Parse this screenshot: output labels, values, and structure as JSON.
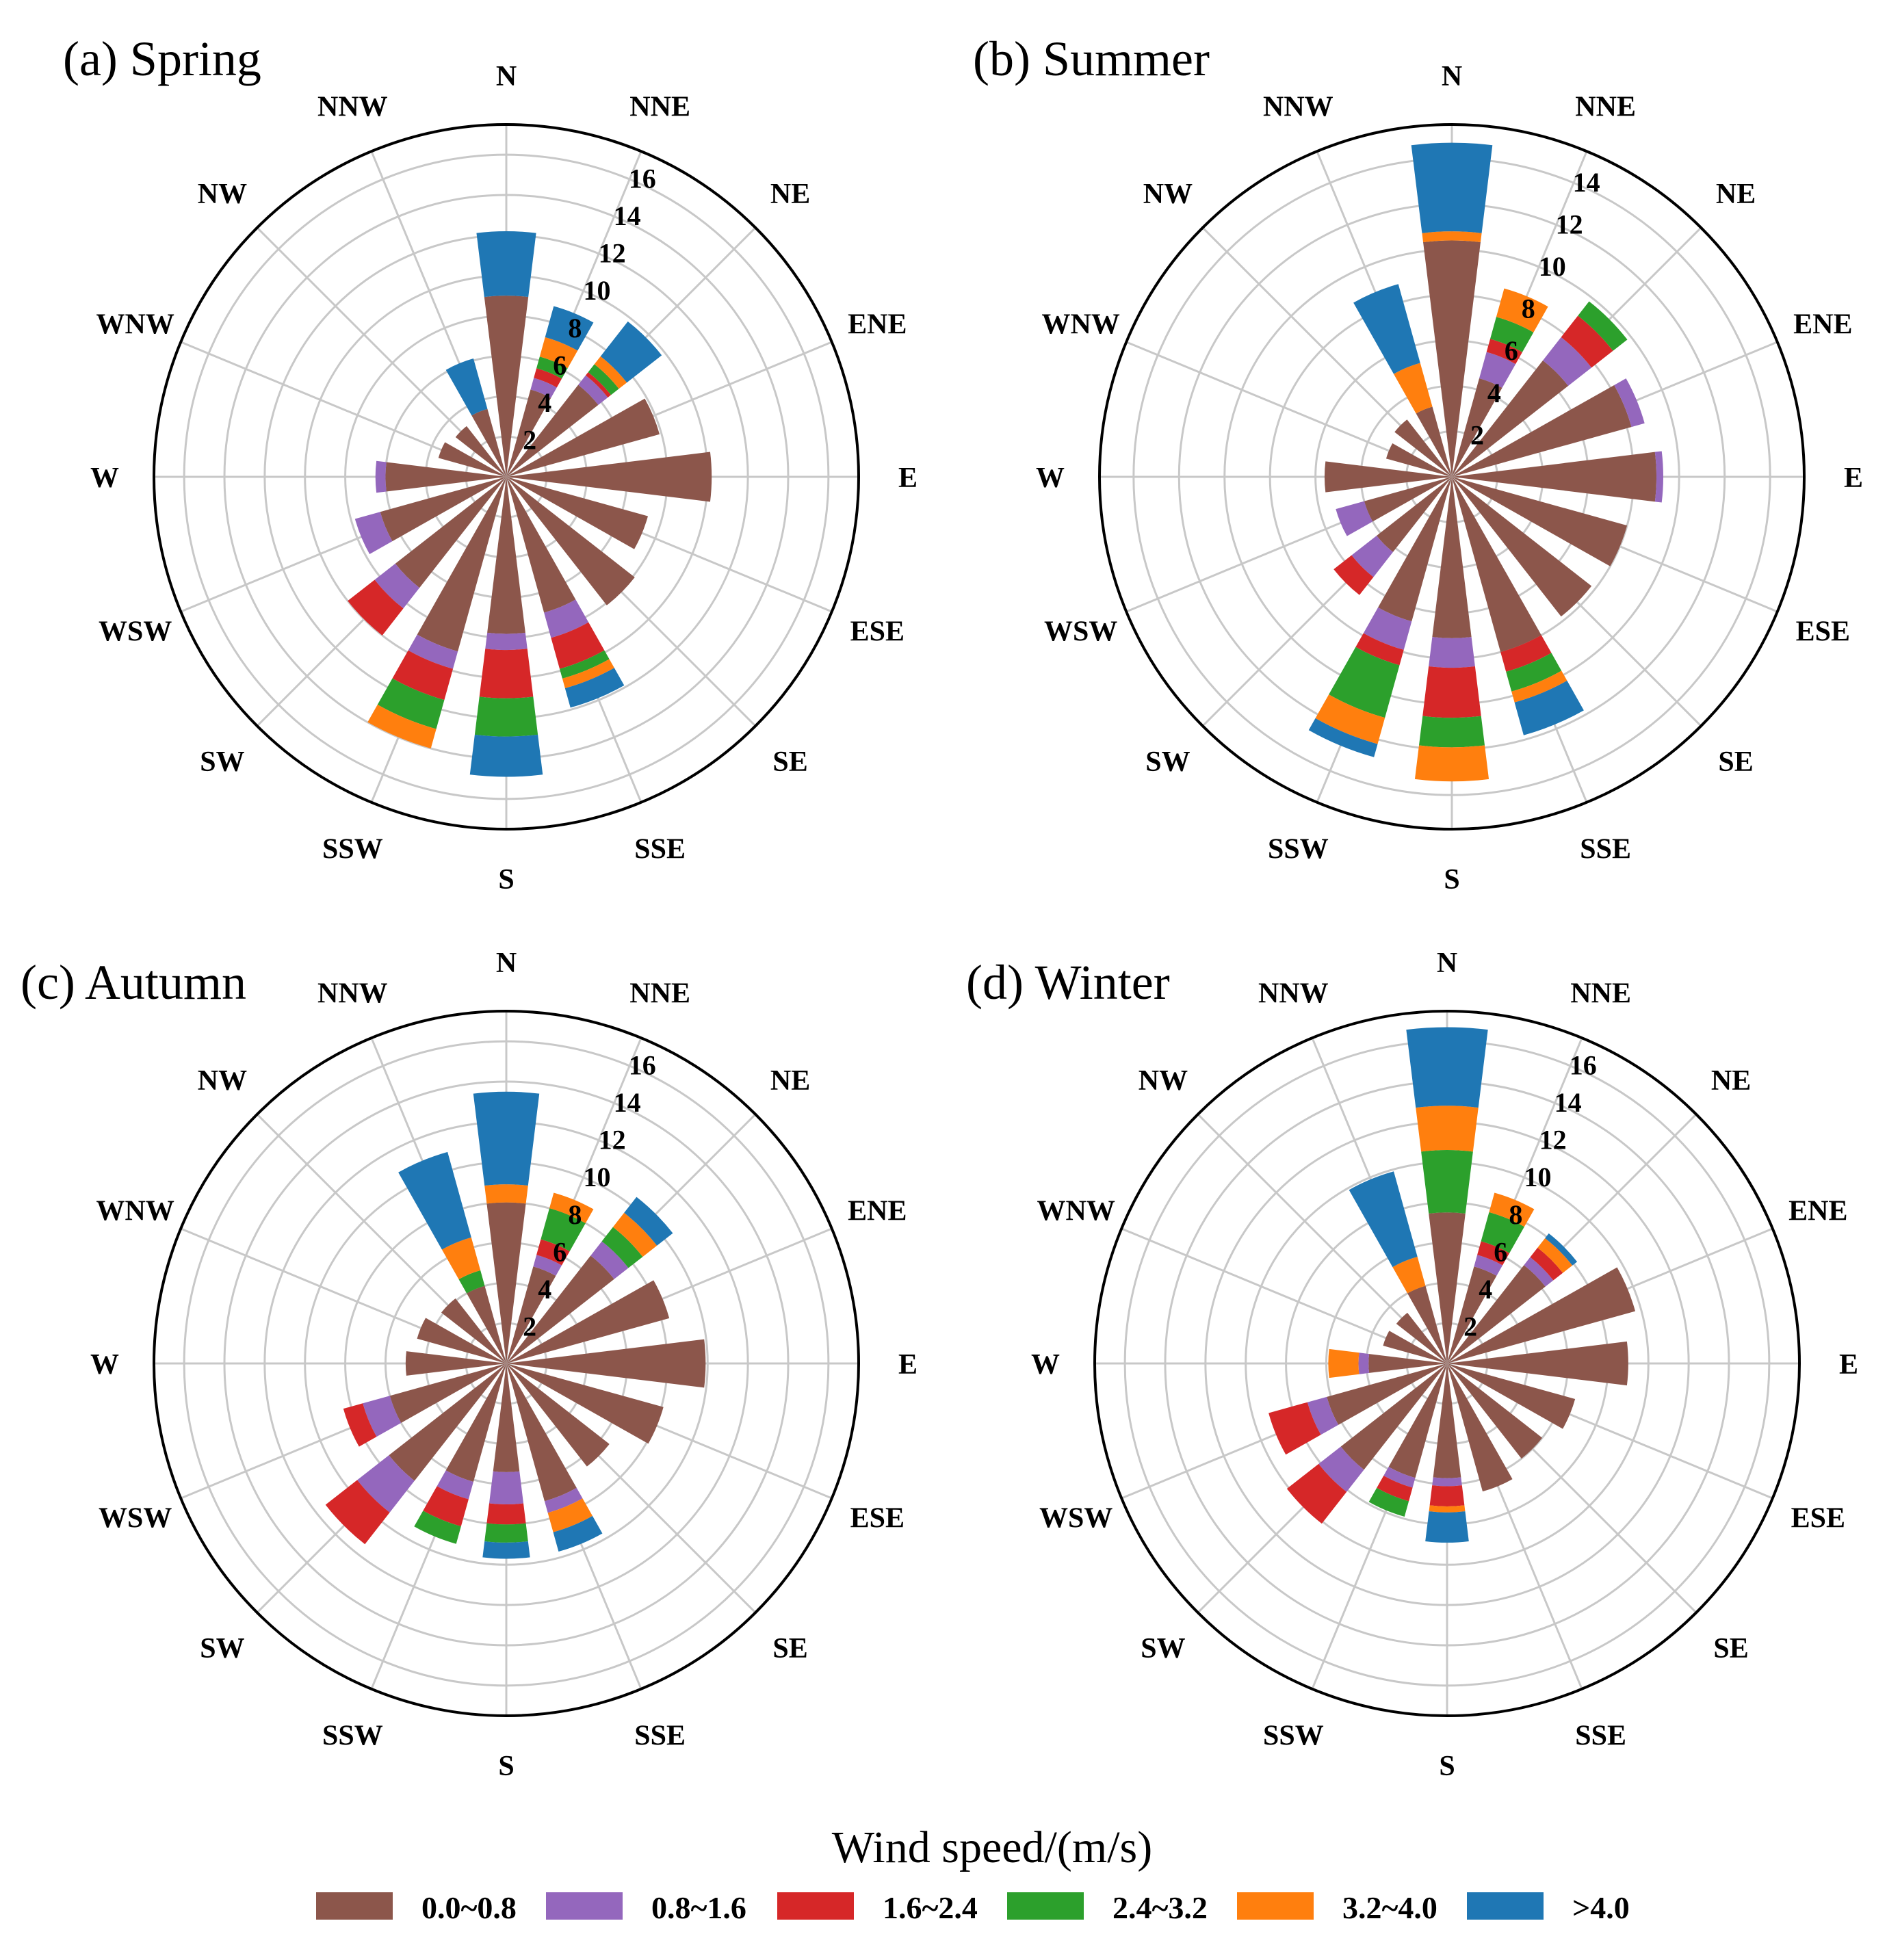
{
  "chart_data": {
    "type": "wind-rose",
    "directions": [
      "N",
      "NNE",
      "NE",
      "ENE",
      "E",
      "ESE",
      "SE",
      "SSE",
      "S",
      "SSW",
      "SW",
      "WSW",
      "W",
      "WNW",
      "NW",
      "NNW"
    ],
    "speed_bins": [
      "0.0~0.8",
      "0.8~1.6",
      "1.6~2.4",
      "2.4~3.2",
      "3.2~4.0",
      ">4.0"
    ],
    "bin_colors": [
      "#8c564b",
      "#9467bd",
      "#d62728",
      "#2ca02c",
      "#ff7f0e",
      "#1f77b4"
    ],
    "legend_title": "Wind speed/(m/s)",
    "panels": [
      {
        "title": "(a) Spring",
        "rmax": 17.5,
        "rticks": [
          2,
          4,
          6,
          8,
          10,
          12,
          14,
          16
        ],
        "values": [
          [
            9.0,
            0,
            0,
            0,
            0,
            3.2
          ],
          [
            4.5,
            0.6,
            0.5,
            0.6,
            1.0,
            1.6
          ],
          [
            5.8,
            0.6,
            0.2,
            0.5,
            0.5,
            2.2
          ],
          [
            7.9,
            0,
            0,
            0,
            0,
            0
          ],
          [
            10.2,
            0,
            0,
            0,
            0,
            0
          ],
          [
            7.3,
            0,
            0,
            0,
            0,
            0
          ],
          [
            8.1,
            0,
            0,
            0,
            0,
            0
          ],
          [
            7.0,
            1.3,
            1.6,
            0.5,
            0.5,
            1.0
          ],
          [
            7.8,
            0.8,
            2.4,
            1.9,
            0,
            2.0
          ],
          [
            9.0,
            0.9,
            1.6,
            1.5,
            1.0,
            0
          ],
          [
            7.0,
            1.3,
            1.7,
            0,
            0,
            0
          ],
          [
            6.5,
            1.3,
            0,
            0,
            0,
            0
          ],
          [
            6.0,
            0.5,
            0,
            0,
            0,
            0
          ],
          [
            3.5,
            0,
            0,
            0,
            0,
            0
          ],
          [
            3.2,
            0,
            0,
            0,
            0,
            0
          ],
          [
            3.5,
            0,
            0,
            0,
            0,
            2.6
          ]
        ]
      },
      {
        "title": "(b) Summer",
        "rmax": 15.5,
        "rticks": [
          2,
          4,
          6,
          8,
          10,
          12,
          14
        ],
        "values": [
          [
            10.4,
            0,
            0,
            0,
            0.4,
            3.9
          ],
          [
            4.5,
            1.2,
            0.6,
            1.0,
            1.3,
            0
          ],
          [
            6.5,
            1.3,
            1.2,
            0.8,
            0,
            0
          ],
          [
            8.2,
            0.6,
            0,
            0,
            0,
            0
          ],
          [
            9.0,
            0.3,
            0,
            0,
            0,
            0
          ],
          [
            8.0,
            0,
            0,
            0,
            0,
            0
          ],
          [
            7.8,
            0,
            0,
            0,
            0,
            0
          ],
          [
            8.0,
            0,
            0.9,
            0.9,
            0.5,
            1.5
          ],
          [
            7.1,
            1.3,
            2.2,
            1.3,
            1.5,
            0
          ],
          [
            6.6,
            1.3,
            0.7,
            2.4,
            1.2,
            0.6
          ],
          [
            4.2,
            1.4,
            1.0,
            0,
            0,
            0
          ],
          [
            4.0,
            1.3,
            0,
            0,
            0,
            0
          ],
          [
            5.6,
            0,
            0,
            0,
            0,
            0
          ],
          [
            3.0,
            0,
            0,
            0,
            0,
            0
          ],
          [
            3.2,
            0,
            0,
            0,
            0,
            0
          ],
          [
            3.2,
            0,
            0,
            0,
            2.0,
            3.6
          ]
        ]
      },
      {
        "title": "(c) Autumn",
        "rmax": 17.5,
        "rticks": [
          2,
          4,
          6,
          8,
          10,
          12,
          14,
          16
        ],
        "values": [
          [
            8.0,
            0,
            0,
            0,
            0.9,
            4.6
          ],
          [
            5.0,
            0.6,
            0.8,
            1.6,
            0.8,
            0
          ],
          [
            6.8,
            0.9,
            0,
            0.9,
            0.9,
            1.0
          ],
          [
            8.4,
            0,
            0,
            0,
            0,
            0
          ],
          [
            9.9,
            0,
            0,
            0,
            0,
            0
          ],
          [
            8.1,
            0,
            0,
            0,
            0,
            0
          ],
          [
            6.5,
            0,
            0,
            0,
            0,
            0
          ],
          [
            7.1,
            0.6,
            0,
            0,
            1.0,
            1.0
          ],
          [
            5.4,
            1.6,
            1.0,
            0.9,
            0,
            0.8
          ],
          [
            6.1,
            0.9,
            1.4,
            0.9,
            0,
            0
          ],
          [
            7.4,
            2.0,
            2.0,
            0,
            0,
            0
          ],
          [
            6.0,
            1.4,
            1.0,
            0,
            0,
            0
          ],
          [
            5.0,
            0,
            0,
            0,
            0,
            0
          ],
          [
            4.6,
            0,
            0,
            0,
            0,
            0
          ],
          [
            4.1,
            0,
            0,
            0,
            0,
            0
          ],
          [
            4.0,
            0,
            0,
            0.8,
            1.7,
            4.4
          ]
        ]
      },
      {
        "title": "(d) Winter",
        "rmax": 17.5,
        "rticks": [
          2,
          4,
          6,
          8,
          10,
          12,
          14,
          16
        ],
        "values": [
          [
            7.5,
            0,
            0,
            3.1,
            2.2,
            3.9
          ],
          [
            5.0,
            0.6,
            0.7,
            1.5,
            1.0,
            0
          ],
          [
            6.2,
            0.5,
            0.6,
            0,
            0.6,
            0.3
          ],
          [
            9.7,
            0,
            0,
            0,
            0,
            0
          ],
          [
            9.0,
            0,
            0,
            0,
            0,
            0
          ],
          [
            6.6,
            0,
            0,
            0,
            0,
            0
          ],
          [
            6.0,
            0,
            0,
            0,
            0,
            0
          ],
          [
            6.6,
            0,
            0,
            0,
            0,
            0
          ],
          [
            5.7,
            0.4,
            1.0,
            0,
            0.3,
            1.5
          ],
          [
            5.9,
            0.5,
            0.7,
            0.8,
            0,
            0
          ],
          [
            6.7,
            1.4,
            2.0,
            0,
            0,
            0
          ],
          [
            6.2,
            1.0,
            2.0,
            0,
            0,
            0
          ],
          [
            3.9,
            0.5,
            0,
            0,
            1.5,
            0
          ],
          [
            3.3,
            0,
            0,
            0,
            0,
            0
          ],
          [
            3.2,
            0,
            0,
            0,
            0,
            0
          ],
          [
            4.0,
            0,
            0,
            0,
            1.5,
            4.4
          ]
        ]
      }
    ]
  }
}
